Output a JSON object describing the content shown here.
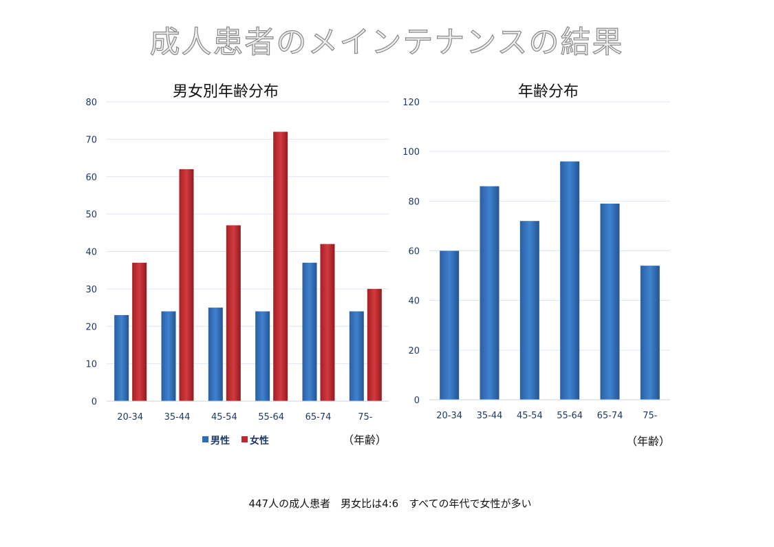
{
  "title": "成人患者のメインテナンスの結果",
  "footer_note": "447人の成人患者　男女比は4:6　すべての年代で女性が多い",
  "colors": {
    "male": "#2e6cb5",
    "female": "#c0282d",
    "total": "#2e6cb5"
  },
  "chart_data": [
    {
      "type": "bar",
      "title": "男女別年齢分布",
      "xlabel": "（年齢）",
      "categories": [
        "20-34",
        "35-44",
        "45-54",
        "55-64",
        "65-74",
        "75-"
      ],
      "ylim": [
        0,
        80
      ],
      "yticks": [
        0,
        10,
        20,
        30,
        40,
        50,
        60,
        70,
        80
      ],
      "grid": true,
      "legend": "bottom",
      "series": [
        {
          "name": "男性",
          "values": [
            23,
            24,
            25,
            24,
            37,
            24
          ]
        },
        {
          "name": "女性",
          "values": [
            37,
            62,
            47,
            72,
            42,
            30
          ]
        }
      ]
    },
    {
      "type": "bar",
      "title": "年齢分布",
      "xlabel": "（年齢）",
      "categories": [
        "20-34",
        "35-44",
        "45-54",
        "55-64",
        "65-74",
        "75-"
      ],
      "ylim": [
        0,
        120
      ],
      "yticks": [
        0,
        20,
        40,
        60,
        80,
        100,
        120
      ],
      "grid": true,
      "values": [
        60,
        86,
        72,
        96,
        79,
        54
      ]
    }
  ]
}
